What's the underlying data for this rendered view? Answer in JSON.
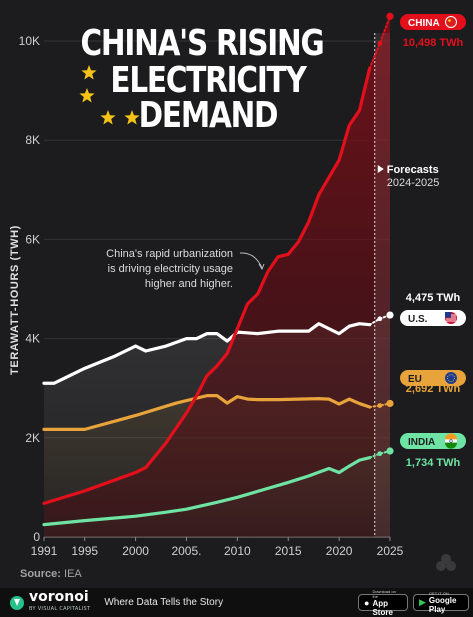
{
  "title_lines": [
    "CHINA'S RISING",
    "ELECTRICITY",
    "DEMAND"
  ],
  "source": {
    "label": "Source:",
    "value": "IEA"
  },
  "footer": {
    "brand": "voronoi",
    "brand_sub": "BY VISUAL CAPITALIST",
    "tagline": "Where Data Tells the Story",
    "app_store": {
      "sub": "Download on the",
      "main": "App Store"
    },
    "google_play": {
      "sub": "GET IT ON",
      "main": "Google Play"
    }
  },
  "colors": {
    "background": "#1c1c1e",
    "china": "#e3101c",
    "us": "#ffffff",
    "eu": "#e8a33a",
    "india": "#6ee3a3",
    "title": "#ffffff",
    "star": "#f3c317"
  },
  "chart_data": {
    "type": "line",
    "ylabel": "TERAWATT-HOURS (TWH)",
    "xlim": [
      1991,
      2025
    ],
    "ylim": [
      0,
      10000
    ],
    "y_ticks": [
      0,
      2000,
      4000,
      6000,
      8000,
      10000
    ],
    "y_tick_labels": [
      "0",
      "2K",
      "4K",
      "6K",
      "8K",
      "10K"
    ],
    "x_ticks": [
      1991,
      1995,
      2000,
      2005,
      2010,
      2015,
      2020,
      2025
    ],
    "x_tick_labels": [
      "1991",
      "1995",
      "2000",
      "2005.",
      "2010",
      "2015",
      "2020",
      "2025"
    ],
    "forecast": {
      "start": 2023.5,
      "label": "Forecasts",
      "range": "2024-2025"
    },
    "annotation": {
      "lines": [
        "China's rapid urbanization",
        "is driving electricity usage",
        "higher and higher."
      ],
      "x": 2013.3,
      "y": 5500
    },
    "series": [
      {
        "name": "CHINA",
        "value_label": "10,498 TWh",
        "flag": "china-flag",
        "x": [
          1991,
          1995,
          2000,
          2001,
          2002,
          2003,
          2004,
          2005,
          2006,
          2007,
          2008,
          2009,
          2010,
          2011,
          2012,
          2013,
          2014,
          2015,
          2016,
          2017,
          2018,
          2019,
          2020,
          2021,
          2022,
          2023,
          2024,
          2025
        ],
        "y": [
          678,
          930,
          1300,
          1400,
          1650,
          1900,
          2200,
          2500,
          2850,
          3250,
          3450,
          3700,
          4200,
          4700,
          4900,
          5350,
          5650,
          5700,
          5950,
          6350,
          6900,
          7250,
          7600,
          8300,
          8600,
          9450,
          9950,
          10498
        ],
        "forecast_from": 2023
      },
      {
        "name": "U.S.",
        "value_label": "4,475 TWh",
        "flag": "us-flag",
        "x": [
          1991,
          1992,
          1995,
          1998,
          2000,
          2001,
          2003,
          2005,
          2006,
          2007,
          2008,
          2009,
          2010,
          2012,
          2014,
          2016,
          2017,
          2018,
          2019,
          2020,
          2021,
          2022,
          2023,
          2024,
          2025
        ],
        "y": [
          3100,
          3100,
          3400,
          3650,
          3850,
          3750,
          3850,
          4000,
          4000,
          4100,
          4100,
          3950,
          4130,
          4100,
          4150,
          4150,
          4150,
          4300,
          4200,
          4100,
          4250,
          4300,
          4280,
          4400,
          4475
        ],
        "forecast_from": 2023
      },
      {
        "name": "EU",
        "value_label": "2,692 TWh",
        "flag": "eu-flag",
        "x": [
          1991,
          1995,
          2000,
          2004,
          2006,
          2007,
          2008,
          2009,
          2010,
          2011,
          2012,
          2014,
          2016,
          2018,
          2019,
          2020,
          2021,
          2022,
          2023,
          2024,
          2025
        ],
        "y": [
          2170,
          2170,
          2450,
          2700,
          2800,
          2850,
          2850,
          2700,
          2830,
          2780,
          2770,
          2770,
          2780,
          2790,
          2780,
          2680,
          2780,
          2690,
          2620,
          2650,
          2692
        ],
        "forecast_from": 2023
      },
      {
        "name": "INDIA",
        "value_label": "1,734 TWh",
        "flag": "india-flag",
        "x": [
          1991,
          1995,
          2000,
          2003,
          2005,
          2008,
          2010,
          2013,
          2015,
          2017,
          2019,
          2020,
          2021,
          2022,
          2023,
          2024,
          2025
        ],
        "y": [
          250,
          330,
          420,
          500,
          560,
          700,
          800,
          980,
          1100,
          1230,
          1380,
          1300,
          1430,
          1550,
          1600,
          1680,
          1734
        ],
        "forecast_from": 2023
      }
    ]
  }
}
